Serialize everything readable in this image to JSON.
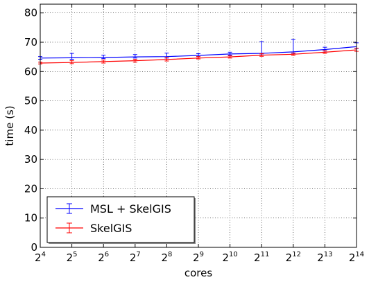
{
  "chart_data": {
    "type": "line",
    "title": "",
    "xlabel": "cores",
    "ylabel": "time (s)",
    "x_scale": "log2",
    "x": [
      16,
      32,
      64,
      128,
      256,
      512,
      1024,
      2048,
      4096,
      8192,
      16384
    ],
    "x_tick_labels": [
      {
        "base": "2",
        "exp": "4"
      },
      {
        "base": "2",
        "exp": "5"
      },
      {
        "base": "2",
        "exp": "6"
      },
      {
        "base": "2",
        "exp": "7"
      },
      {
        "base": "2",
        "exp": "8"
      },
      {
        "base": "2",
        "exp": "9"
      },
      {
        "base": "2",
        "exp": "10"
      },
      {
        "base": "2",
        "exp": "11"
      },
      {
        "base": "2",
        "exp": "12"
      },
      {
        "base": "2",
        "exp": "13"
      },
      {
        "base": "2",
        "exp": "14"
      }
    ],
    "ylim": [
      0,
      83
    ],
    "y_ticks": [
      "0",
      "10",
      "20",
      "30",
      "40",
      "50",
      "60",
      "70",
      "80"
    ],
    "grid": true,
    "legend_position": "lower-left",
    "series": [
      {
        "name": "MSL + SkelGIS",
        "color": "#0000ff",
        "values": [
          64.6,
          64.7,
          64.8,
          65.0,
          65.1,
          65.5,
          66.0,
          66.2,
          66.7,
          67.5,
          68.5
        ],
        "err_low": [
          0.4,
          0.5,
          0.4,
          0.4,
          0.5,
          0.4,
          0.4,
          0.5,
          0.5,
          0.5,
          0.6
        ],
        "err_high": [
          0.5,
          1.5,
          0.8,
          0.8,
          1.2,
          0.6,
          0.6,
          4.0,
          4.3,
          0.8,
          1.3
        ]
      },
      {
        "name": "SkelGIS",
        "color": "#ff0000",
        "values": [
          62.9,
          63.1,
          63.4,
          63.7,
          64.1,
          64.6,
          65.0,
          65.6,
          65.9,
          66.6,
          67.4
        ],
        "err_low": [
          0.3,
          0.4,
          0.5,
          0.5,
          0.5,
          0.3,
          0.4,
          0.4,
          0.4,
          0.4,
          0.5
        ],
        "err_high": [
          0.3,
          0.6,
          0.5,
          0.5,
          0.6,
          0.5,
          0.4,
          0.5,
          0.4,
          0.5,
          0.6
        ]
      }
    ]
  }
}
